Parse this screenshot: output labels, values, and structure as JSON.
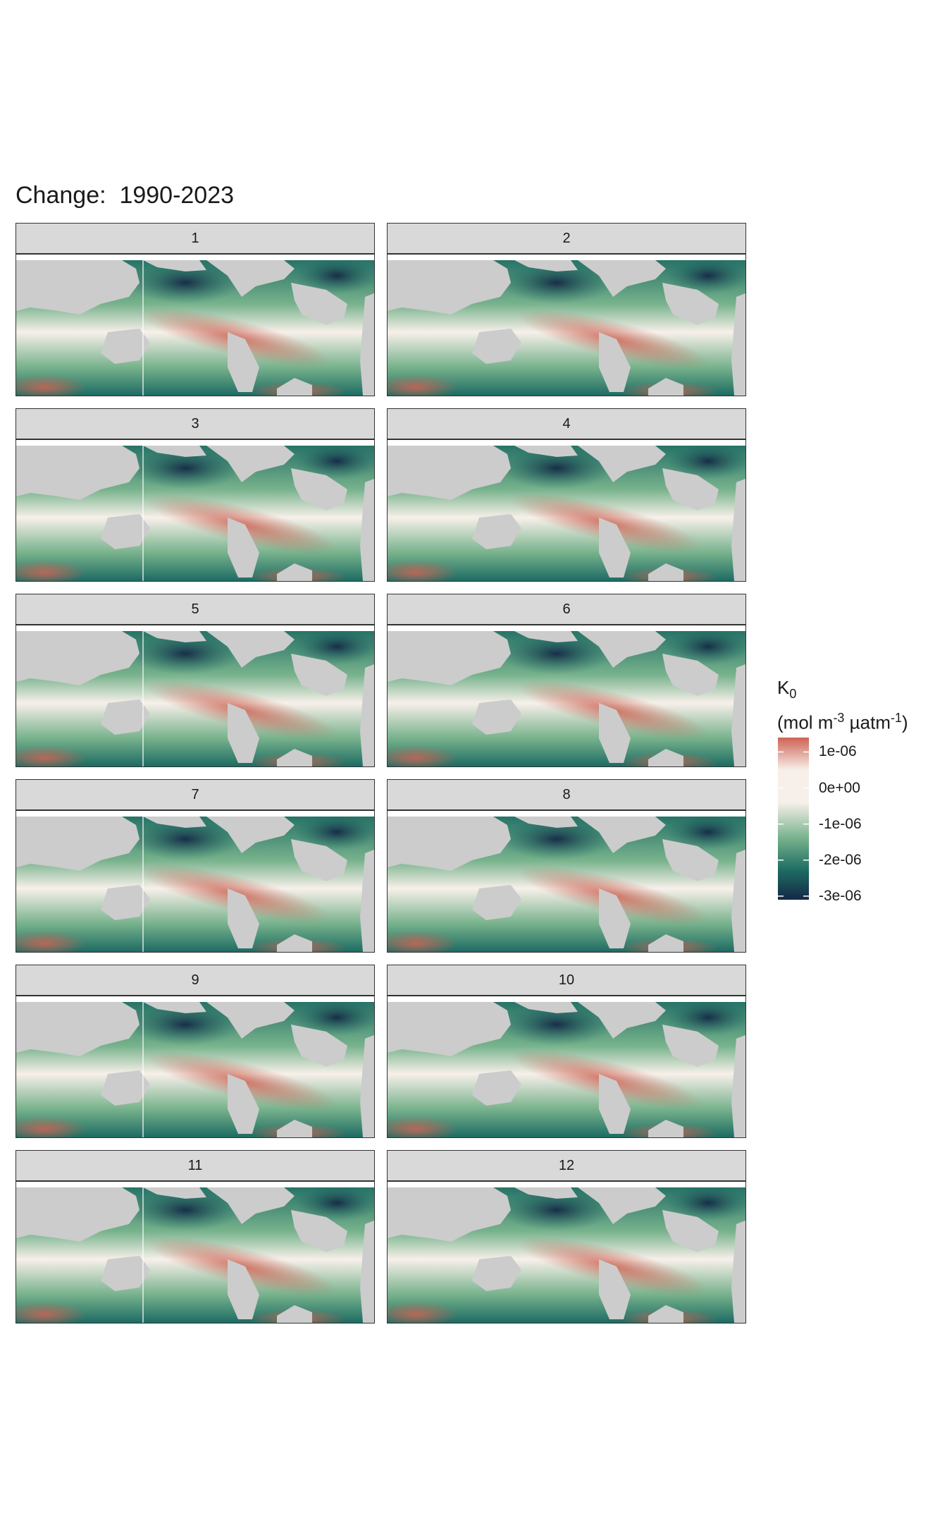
{
  "title": "Change:  1990-2023",
  "chart_data": {
    "type": "heatmap",
    "title": "Change:  1990-2023",
    "panels": [
      "1",
      "2",
      "3",
      "4",
      "5",
      "6",
      "7",
      "8",
      "9",
      "10",
      "11",
      "12"
    ],
    "legend": {
      "title_main": "K",
      "title_sub": "0",
      "unit_prefix": "(mol m",
      "unit_exp1": "-3",
      "unit_mid": " µatm",
      "unit_exp2": "-1",
      "unit_suffix": ")",
      "ticks": [
        "1e-06",
        "0e+00",
        "-1e-06",
        "-2e-06",
        "-3e-06"
      ],
      "tick_values": [
        1e-06,
        0,
        -1e-06,
        -2e-06,
        -3e-06
      ],
      "range": [
        -3.1e-06,
        1.4e-06
      ],
      "colors": {
        "high": "#cd6354",
        "mid": "#f7f0ea",
        "low1": "#77b28c",
        "low2": "#1d6b63",
        "low3": "#152846"
      },
      "placement": "right"
    }
  },
  "colors": {
    "land": "#cccccc",
    "strip": "#d9d9d9"
  }
}
